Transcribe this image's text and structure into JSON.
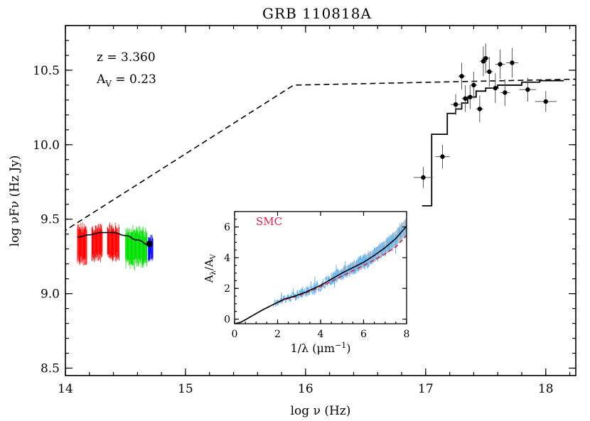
{
  "chart_data": [
    {
      "type": "line",
      "title": "GRB 110818A",
      "xlabel": "log ν (Hz)",
      "ylabel": "log νFν (Hz Jy)",
      "xlim": [
        14,
        18.25
      ],
      "ylim": [
        8.45,
        10.8
      ],
      "x_ticks": [
        "14",
        "15",
        "16",
        "17",
        "18"
      ],
      "y_ticks": [
        "8.5",
        "9.0",
        "9.5",
        "10.0",
        "10.5"
      ],
      "annotations": {
        "redshift": "z = 3.360",
        "extinction": "A",
        "extinction_sub": "V",
        "extinction_value": " = 0.23"
      },
      "colors": {
        "red": "#ff0000",
        "green": "#00e000",
        "blue": "#0000ff",
        "black": "#000000"
      },
      "series": [
        {
          "style": "dashed",
          "points": [
            [
              13.97,
              9.41
            ],
            [
              15.9,
              10.4
            ],
            [
              18.25,
              10.44
            ]
          ]
        },
        {
          "style": "solid-curve",
          "points": [
            [
              14.1,
              9.38
            ],
            [
              14.2,
              9.395
            ],
            [
              14.3,
              9.41
            ],
            [
              14.4,
              9.41
            ],
            [
              14.5,
              9.39
            ],
            [
              14.6,
              9.36
            ],
            [
              14.7,
              9.325
            ],
            [
              14.72,
              9.33
            ]
          ]
        },
        {
          "style": "step",
          "points": [
            [
              16.97,
              9.59
            ],
            [
              17.05,
              9.59
            ],
            [
              17.05,
              10.07
            ],
            [
              17.18,
              10.07
            ],
            [
              17.18,
              10.21
            ],
            [
              17.25,
              10.21
            ],
            [
              17.25,
              10.24
            ],
            [
              17.3,
              10.24
            ],
            [
              17.3,
              10.28
            ],
            [
              17.35,
              10.28
            ],
            [
              17.35,
              10.32
            ],
            [
              17.42,
              10.32
            ],
            [
              17.42,
              10.36
            ],
            [
              17.5,
              10.36
            ],
            [
              17.5,
              10.38
            ],
            [
              17.6,
              10.38
            ],
            [
              17.6,
              10.4
            ],
            [
              17.8,
              10.4
            ],
            [
              17.8,
              10.42
            ],
            [
              17.95,
              10.42
            ],
            [
              17.95,
              10.43
            ],
            [
              18.15,
              10.43
            ]
          ]
        }
      ],
      "optical_spectra": [
        {
          "color": "red",
          "x_range": [
            14.1,
            14.18
          ],
          "y_center": 9.33,
          "y_half": 0.14
        },
        {
          "color": "red",
          "x_range": [
            14.22,
            14.31
          ],
          "y_center": 9.34,
          "y_half": 0.13
        },
        {
          "color": "red",
          "x_range": [
            14.35,
            14.45
          ],
          "y_center": 9.34,
          "y_half": 0.13
        },
        {
          "color": "green",
          "x_range": [
            14.5,
            14.68
          ],
          "y_center": 9.31,
          "y_half": 0.14
        },
        {
          "color": "blue",
          "x_range": [
            14.69,
            14.73
          ],
          "y_center": 9.3,
          "y_half": 0.09
        }
      ],
      "optical_point": {
        "x": 14.7,
        "y": 9.335
      },
      "xray_points": [
        {
          "x": 16.98,
          "y": 9.78,
          "xerr": 0.08,
          "yerr": 0.07
        },
        {
          "x": 17.14,
          "y": 9.92,
          "xerr": 0.06,
          "yerr": 0.08
        },
        {
          "x": 17.25,
          "y": 10.27,
          "xerr": 0.04,
          "yerr": 0.07
        },
        {
          "x": 17.3,
          "y": 10.46,
          "xerr": 0.03,
          "yerr": 0.09
        },
        {
          "x": 17.33,
          "y": 10.31,
          "xerr": 0.03,
          "yerr": 0.09
        },
        {
          "x": 17.37,
          "y": 10.32,
          "xerr": 0.03,
          "yerr": 0.08
        },
        {
          "x": 17.4,
          "y": 10.4,
          "xerr": 0.03,
          "yerr": 0.09
        },
        {
          "x": 17.45,
          "y": 10.24,
          "xerr": 0.03,
          "yerr": 0.09
        },
        {
          "x": 17.48,
          "y": 10.56,
          "xerr": 0.03,
          "yerr": 0.1
        },
        {
          "x": 17.5,
          "y": 10.58,
          "xerr": 0.03,
          "yerr": 0.1
        },
        {
          "x": 17.53,
          "y": 10.49,
          "xerr": 0.03,
          "yerr": 0.1
        },
        {
          "x": 17.58,
          "y": 10.38,
          "xerr": 0.03,
          "yerr": 0.1
        },
        {
          "x": 17.62,
          "y": 10.54,
          "xerr": 0.04,
          "yerr": 0.1
        },
        {
          "x": 17.66,
          "y": 10.35,
          "xerr": 0.04,
          "yerr": 0.09
        },
        {
          "x": 17.72,
          "y": 10.55,
          "xerr": 0.05,
          "yerr": 0.1
        },
        {
          "x": 17.85,
          "y": 10.37,
          "xerr": 0.07,
          "yerr": 0.08
        },
        {
          "x": 18.0,
          "y": 10.29,
          "xerr": 0.09,
          "yerr": 0.07
        }
      ]
    },
    {
      "type": "line",
      "xlabel": "1/λ (μm⁻¹)",
      "ylabel": "Aλ/AV",
      "ylabel_main": "A",
      "ylabel_sub1": "λ",
      "ylabel_slash": "/A",
      "ylabel_sub2": "V",
      "xlabel_text": "1/λ (μm",
      "xlabel_sup": "−1",
      "xlabel_close": ")",
      "xlim": [
        0,
        8
      ],
      "ylim": [
        -0.3,
        7
      ],
      "x_ticks": [
        "0",
        "2",
        "4",
        "6",
        "8"
      ],
      "y_ticks": [
        "0",
        "2",
        "4",
        "6"
      ],
      "legend": "SMC",
      "colors": {
        "model": "#000000",
        "smc": "#e0204a",
        "data": "#6bb7ef",
        "band": "#c0c0c0"
      },
      "model_curve": [
        [
          0,
          -0.3
        ],
        [
          0.3,
          -0.2
        ],
        [
          0.8,
          0.2
        ],
        [
          1.3,
          0.6
        ],
        [
          1.8,
          0.95
        ],
        [
          2.3,
          1.3
        ],
        [
          2.8,
          1.5
        ],
        [
          3.3,
          1.75
        ],
        [
          4,
          2.2
        ],
        [
          4.5,
          2.6
        ],
        [
          5,
          3.0
        ],
        [
          5.5,
          3.35
        ],
        [
          6,
          3.7
        ],
        [
          6.5,
          4.15
        ],
        [
          7,
          4.65
        ],
        [
          7.5,
          5.25
        ],
        [
          8,
          6.05
        ]
      ],
      "smc_curve": [
        [
          0,
          -0.3
        ],
        [
          0.3,
          -0.2
        ],
        [
          0.8,
          0.2
        ],
        [
          1.3,
          0.6
        ],
        [
          1.8,
          0.95
        ],
        [
          2.3,
          1.25
        ],
        [
          2.8,
          1.45
        ],
        [
          3.3,
          1.7
        ],
        [
          4,
          2.1
        ],
        [
          4.5,
          2.45
        ],
        [
          5,
          2.8
        ],
        [
          5.5,
          3.15
        ],
        [
          6,
          3.5
        ],
        [
          6.5,
          3.85
        ],
        [
          7,
          4.25
        ],
        [
          7.5,
          4.7
        ],
        [
          8,
          5.45
        ]
      ],
      "spectrum_range": [
        1.8,
        8
      ],
      "band_half_width": [
        0.25,
        0.55
      ]
    }
  ]
}
